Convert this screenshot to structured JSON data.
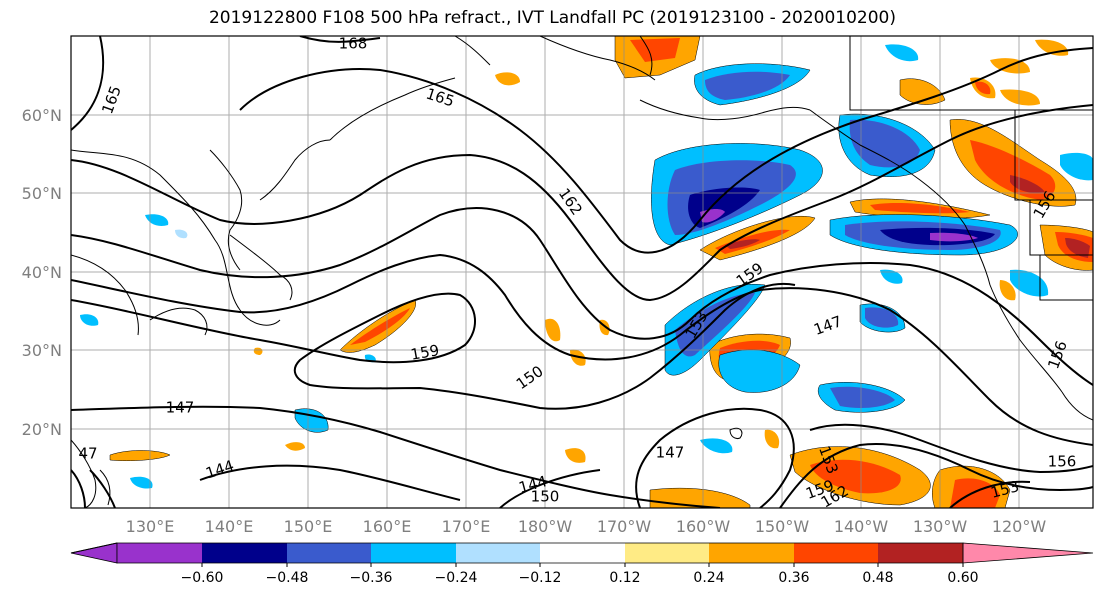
{
  "title": "2019122800 F108 500 hPa refract., IVT Landfall PC (2019123100 - 2020010200)",
  "lat_labels": [
    "20°N",
    "30°N",
    "40°N",
    "50°N",
    "60°N"
  ],
  "lon_labels": [
    "130°E",
    "140°E",
    "150°E",
    "160°E",
    "170°E",
    "180°W",
    "170°W",
    "160°W",
    "150°W",
    "140°W",
    "130°W",
    "120°W"
  ],
  "contour_labels": [
    "168",
    "165",
    "165",
    "162",
    "159",
    "159",
    "153",
    "150",
    "147",
    "147",
    "144",
    "144",
    "147",
    "150",
    "153",
    "162",
    "159",
    "156",
    "153",
    "156",
    "156",
    "47"
  ],
  "colorbar": {
    "ticks": [
      "−0.60",
      "−0.48",
      "−0.36",
      "−0.24",
      "−0.12",
      "0.12",
      "0.24",
      "0.36",
      "0.48",
      "0.60"
    ],
    "colors": [
      "#9932CC",
      "#00008B",
      "#3A5BCD",
      "#00BFFF",
      "#B0E0FF",
      "#FFFFFF",
      "#FFEB85",
      "#FFA500",
      "#FF4500",
      "#B22222",
      "#FF88AA"
    ]
  }
}
